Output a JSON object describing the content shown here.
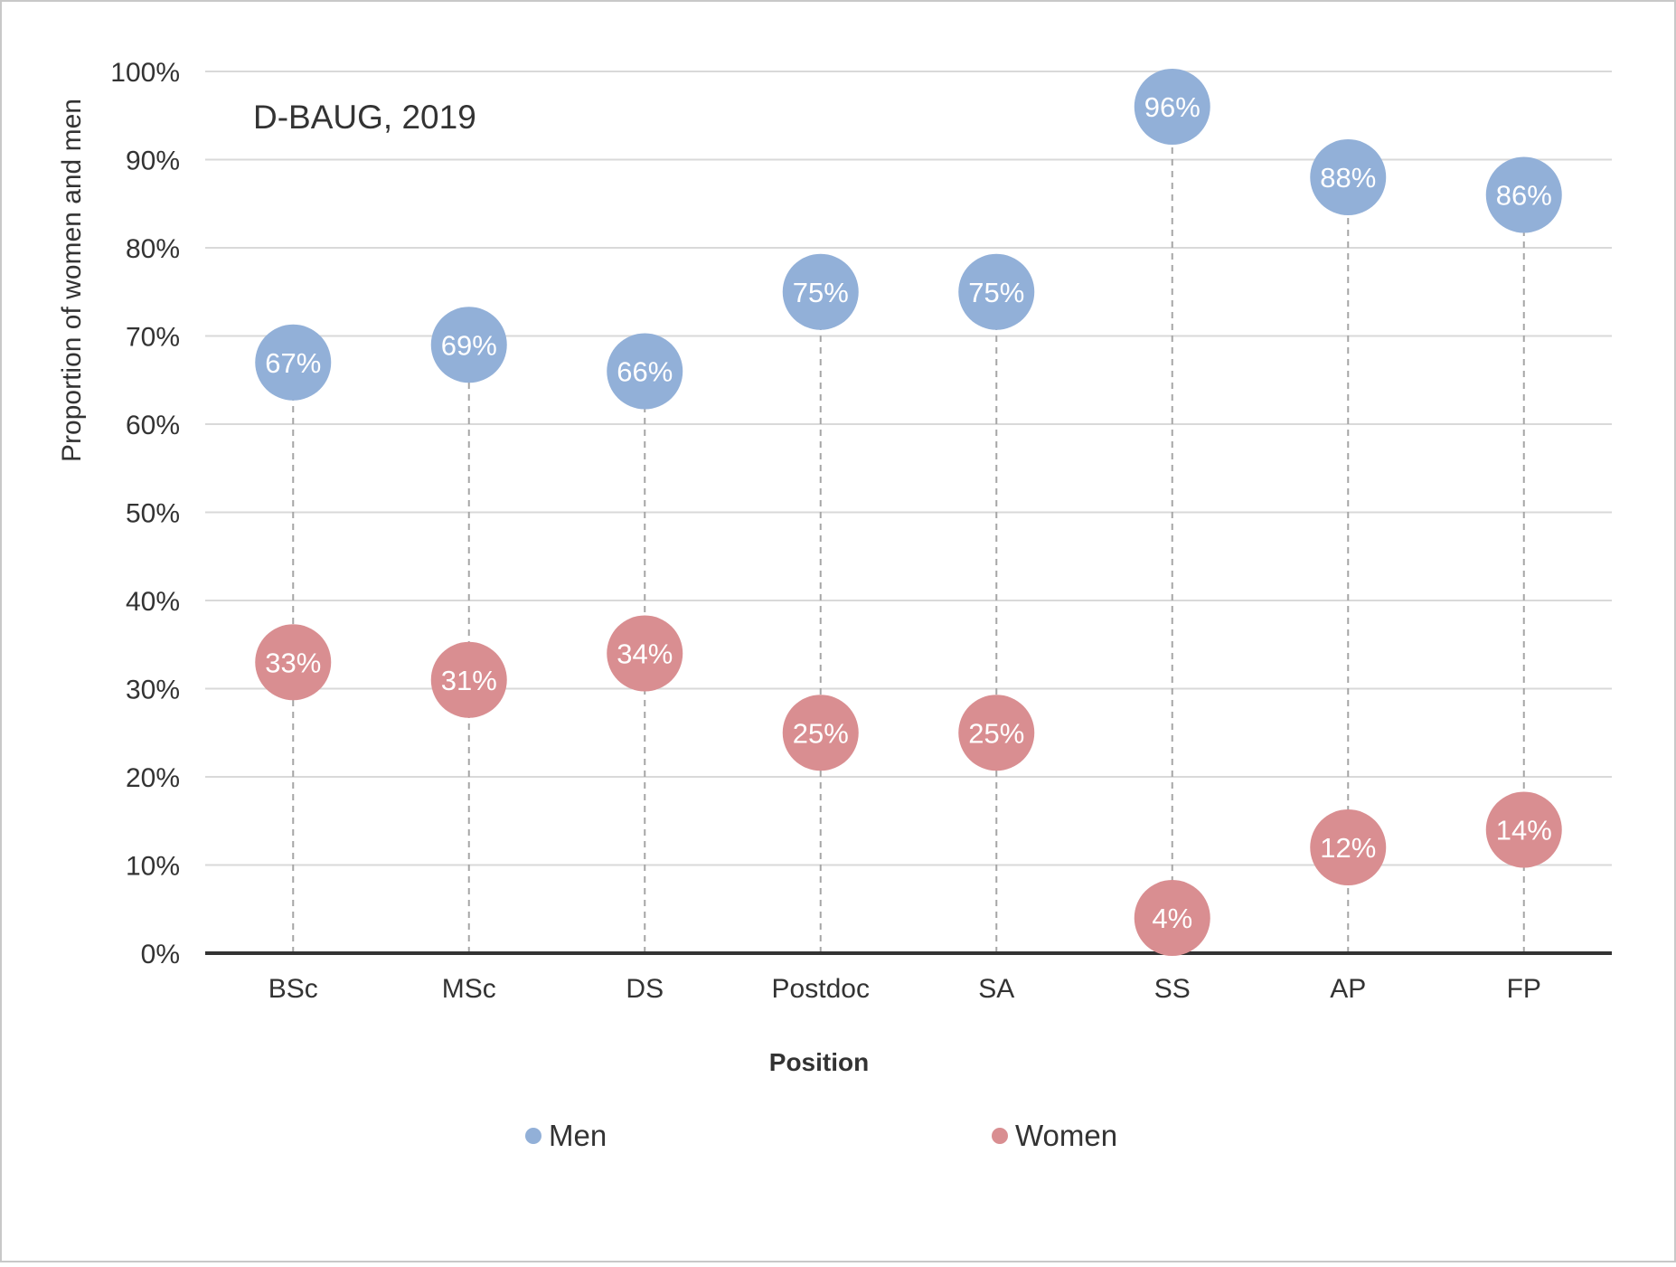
{
  "chart_data": {
    "type": "scatter",
    "subtitle": "D-BAUG, 2019",
    "xlabel": "Position",
    "ylabel": "Proportion of women and men",
    "categories": [
      "BSc",
      "MSc",
      "DS",
      "Postdoc",
      "SA",
      "SS",
      "AP",
      "FP"
    ],
    "ylim": [
      0,
      100
    ],
    "y_ticks": [
      "0%",
      "10%",
      "20%",
      "30%",
      "40%",
      "50%",
      "60%",
      "70%",
      "80%",
      "90%",
      "100%"
    ],
    "grid": true,
    "legend_position": "bottom",
    "series": [
      {
        "name": "Men",
        "color": "#92b0d8",
        "values": [
          67,
          69,
          66,
          75,
          75,
          96,
          88,
          86
        ],
        "labels": [
          "67%",
          "69%",
          "66%",
          "75%",
          "75%",
          "96%",
          "88%",
          "86%"
        ]
      },
      {
        "name": "Women",
        "color": "#d98e91",
        "values": [
          33,
          31,
          34,
          25,
          25,
          4,
          12,
          14
        ],
        "labels": [
          "33%",
          "31%",
          "34%",
          "25%",
          "25%",
          "4%",
          "12%",
          "14%"
        ]
      }
    ]
  }
}
